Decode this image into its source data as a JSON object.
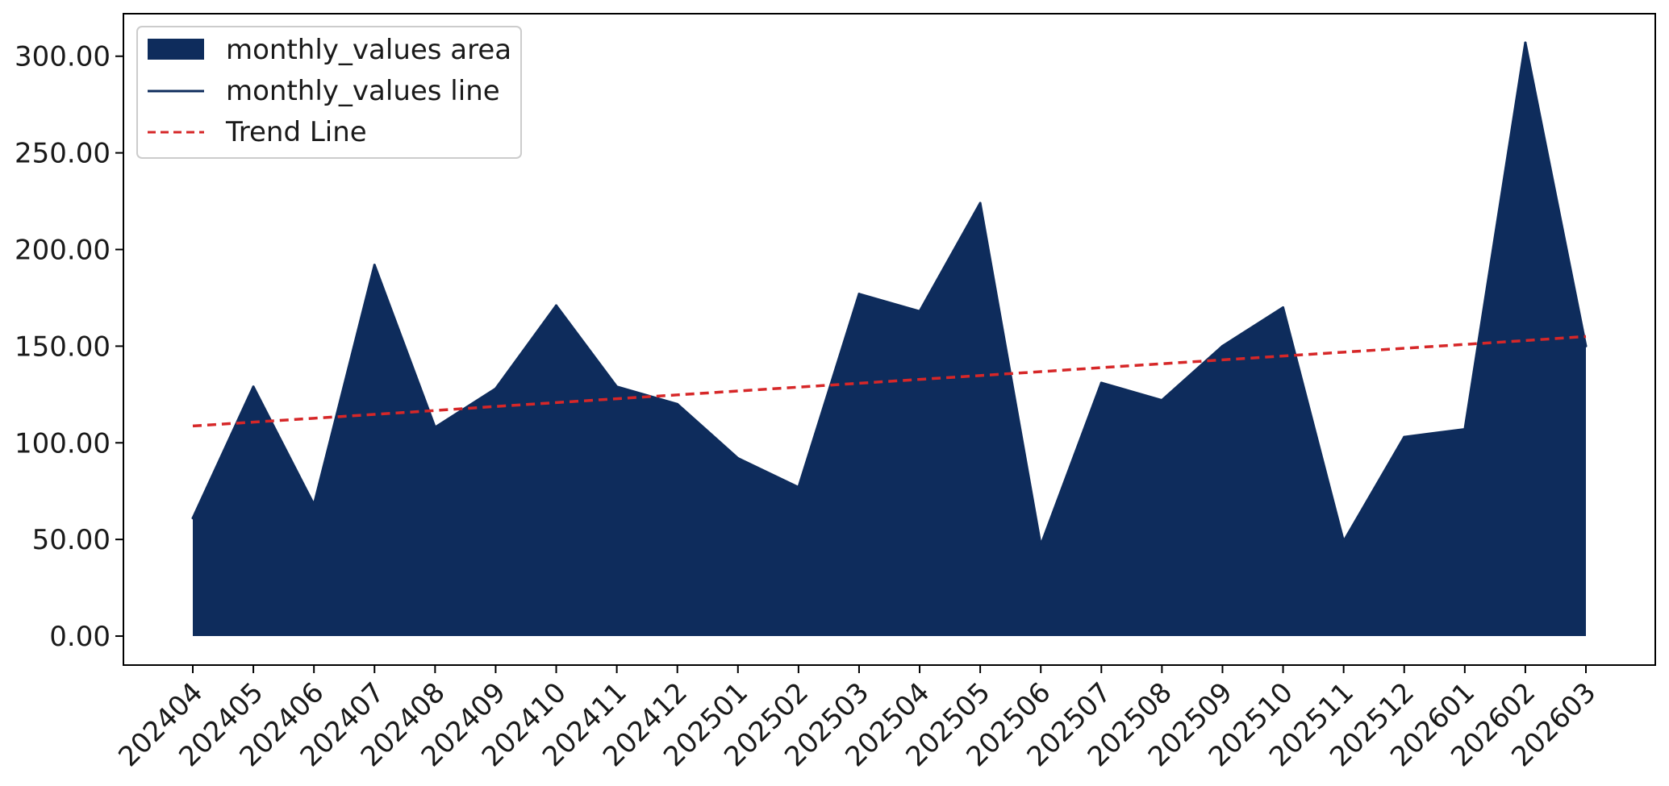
{
  "chart_data": {
    "type": "area",
    "categories": [
      "202404",
      "202405",
      "202406",
      "202407",
      "202408",
      "202409",
      "202410",
      "202411",
      "202412",
      "202501",
      "202502",
      "202503",
      "202504",
      "202505",
      "202506",
      "202507",
      "202508",
      "202509",
      "202510",
      "202511",
      "202512",
      "202601",
      "202602",
      "202603"
    ],
    "series": [
      {
        "name": "monthly_values area",
        "kind": "area",
        "color": "#0e2c5c",
        "values": [
          61,
          129,
          68,
          192,
          108,
          128,
          171,
          129,
          120,
          92,
          77,
          177,
          168,
          224,
          47,
          131,
          122,
          150,
          170,
          49,
          103,
          107,
          307,
          150
        ]
      },
      {
        "name": "monthly_values line",
        "kind": "line",
        "color": "#0e2c5c",
        "values": [
          61,
          129,
          68,
          192,
          108,
          128,
          171,
          129,
          120,
          92,
          77,
          177,
          168,
          224,
          47,
          131,
          122,
          150,
          170,
          49,
          103,
          107,
          307,
          150
        ]
      },
      {
        "name": "Trend Line",
        "kind": "dashed-line",
        "color": "#d62728",
        "values": [
          108.7,
          110.7,
          112.7,
          114.7,
          116.7,
          118.8,
          120.8,
          122.8,
          124.8,
          126.8,
          128.8,
          130.8,
          132.8,
          134.8,
          136.8,
          138.9,
          140.9,
          142.9,
          144.9,
          146.9,
          148.9,
          150.9,
          152.9,
          155.0
        ]
      }
    ],
    "yticks": [
      "0.00",
      "50.00",
      "100.00",
      "150.00",
      "200.00",
      "250.00",
      "300.00"
    ],
    "ytick_values": [
      0,
      50,
      100,
      150,
      200,
      250,
      300
    ],
    "ylim": [
      -15,
      322
    ],
    "grid": false,
    "legend_position": "top-left",
    "title": "",
    "xlabel": "",
    "ylabel": ""
  }
}
